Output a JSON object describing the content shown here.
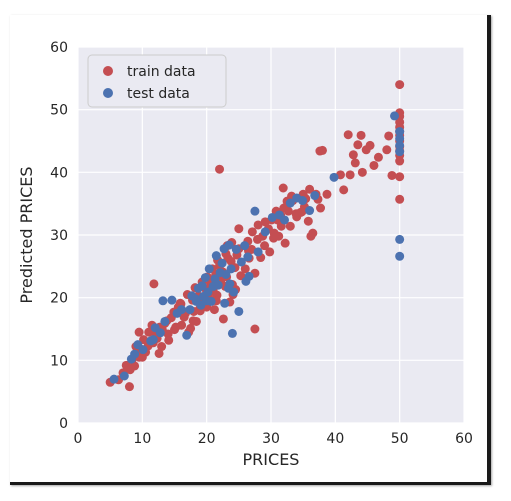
{
  "chart_data": {
    "type": "scatter",
    "title": "",
    "xlabel": "PRICES",
    "ylabel": "Predicted PRICES",
    "xlim": [
      0,
      60
    ],
    "ylim": [
      0,
      60
    ],
    "xticks": [
      "0",
      "10",
      "20",
      "30",
      "40",
      "50",
      "60"
    ],
    "yticks": [
      "0",
      "10",
      "20",
      "30",
      "40",
      "50",
      "60"
    ],
    "grid": true,
    "legend": "top-left",
    "series": [
      {
        "name": "train data",
        "color": "#c44e52",
        "x": [
          5,
          6.3,
          7,
          7.5,
          8,
          8.1,
          8.4,
          8.8,
          9,
          9.5,
          9.7,
          10,
          10.2,
          10.5,
          10.9,
          11,
          11.5,
          11.7,
          12,
          12.3,
          12.7,
          13,
          13.1,
          13.5,
          13.8,
          14,
          14.1,
          14.5,
          14.9,
          15,
          15.2,
          15.6,
          16,
          16.1,
          16.5,
          16.7,
          17,
          17.2,
          17.5,
          17.8,
          18,
          18.2,
          18.4,
          18.7,
          18.9,
          19,
          19.3,
          19.4,
          19.6,
          19.9,
          20,
          20.1,
          20.3,
          20.5,
          20.6,
          20.9,
          21,
          21.2,
          21.4,
          21.6,
          21.7,
          22,
          22,
          22.2,
          22.5,
          22.6,
          22.9,
          23,
          23.1,
          23.3,
          23.6,
          23.8,
          23.9,
          24,
          24.1,
          24.4,
          24.5,
          24.7,
          25,
          25,
          25.3,
          26,
          26.4,
          26.6,
          27,
          27.1,
          27.5,
          27.9,
          28,
          28.4,
          28.7,
          29,
          29.1,
          29.6,
          29.8,
          30.1,
          30.5,
          30.8,
          31,
          31.2,
          31.5,
          31.6,
          32,
          32.2,
          32.5,
          32.7,
          33,
          33.2,
          33.4,
          34,
          34.6,
          35,
          35.2,
          35.4,
          36,
          36.2,
          36.5,
          37,
          37.3,
          37.6,
          38,
          38.7,
          41.3,
          42,
          42.3,
          42.8,
          43.1,
          43.5,
          44,
          44.8,
          45.4,
          46,
          46.7,
          48,
          48.3,
          48.8,
          50,
          50,
          50,
          50,
          50,
          50,
          50,
          50,
          50,
          50,
          50,
          50,
          50,
          50,
          22,
          27.5,
          21.5,
          23.2,
          17.9,
          9.5,
          11.8,
          26.5,
          30.4,
          33.9,
          34.8,
          12.6,
          15.9,
          37.7,
          40.8,
          44.2,
          35.8,
          31.9
        ],
        "y": [
          6.5,
          6.9,
          8,
          9.2,
          5.8,
          8.5,
          10.1,
          9.1,
          12.2,
          10.5,
          11.8,
          10.5,
          13.3,
          11.3,
          12.3,
          14.5,
          15.6,
          12.8,
          14.4,
          13.5,
          15.3,
          12.2,
          14.9,
          15.9,
          16.3,
          14.2,
          13.2,
          16.8,
          17.7,
          14.9,
          15.3,
          18.5,
          19,
          15.6,
          16.9,
          17.5,
          20.5,
          14.5,
          15.1,
          19.6,
          17.8,
          21.6,
          16.2,
          20.3,
          18.2,
          17.9,
          22.5,
          19.8,
          18.6,
          21.3,
          18.5,
          23.3,
          20.6,
          19.7,
          22.2,
          24.6,
          21.2,
          18.1,
          23.7,
          20.4,
          26,
          25.1,
          40.5,
          22.8,
          24.1,
          16.6,
          21.8,
          27,
          23.3,
          26.3,
          19.3,
          25.8,
          28.8,
          22.1,
          20.5,
          24.8,
          21.3,
          26.8,
          31,
          27.8,
          23.5,
          24.6,
          29,
          26.3,
          27.7,
          30.5,
          23.9,
          29.3,
          31.6,
          26.4,
          29.8,
          28.3,
          32.1,
          31,
          27.3,
          32.4,
          30.3,
          33.8,
          32.4,
          29.8,
          33.1,
          31.4,
          34.3,
          28.7,
          35.4,
          33.8,
          31.4,
          36.2,
          35.5,
          32.9,
          33.6,
          36.5,
          34.5,
          35.8,
          37.3,
          29.8,
          30.3,
          36.5,
          35.7,
          43.4,
          43.5,
          36.5,
          37.2,
          46,
          39.6,
          42.8,
          41.5,
          44.4,
          45.9,
          43.6,
          44.3,
          41.1,
          42.4,
          43.6,
          45.8,
          39.5,
          54,
          49.5,
          48.9,
          48,
          47.2,
          46.5,
          45.9,
          45,
          44.1,
          43.4,
          42.7,
          41.8,
          39.3,
          35.7,
          22.5,
          15,
          19.5,
          28.3,
          16.3,
          14.5,
          22.2,
          27.5,
          29.5,
          33.4,
          33.7,
          11.1,
          19.1,
          34.3,
          39.6,
          40,
          32.2,
          37.5
        ]
      },
      {
        "name": "test data",
        "color": "#4c72b0",
        "x": [
          5.6,
          7.2,
          8.3,
          8.8,
          9.3,
          10.1,
          11.3,
          12,
          12.8,
          13.5,
          14.6,
          15.4,
          16.1,
          16.9,
          17.4,
          17.7,
          18.3,
          18.7,
          19.1,
          19.5,
          19.8,
          20.2,
          20.4,
          20.7,
          21,
          21.3,
          21.5,
          21.8,
          22.1,
          22.4,
          22.7,
          23,
          23.4,
          23.5,
          23.8,
          24.2,
          24.6,
          25,
          25.4,
          25.9,
          26.1,
          26.4,
          26.6,
          27.5,
          28,
          29.1,
          30.2,
          31.3,
          32.1,
          33,
          34,
          34.9,
          36,
          36.8,
          39.8,
          49.2,
          50,
          50,
          50,
          50,
          50,
          50,
          20,
          24,
          22.8,
          19.3,
          18.4,
          13.2,
          11.7,
          23.6
        ],
        "y": [
          7,
          7.5,
          10.2,
          11,
          12.5,
          11.7,
          13.1,
          15.2,
          14.4,
          16.2,
          19.6,
          17.5,
          18.1,
          14,
          18.1,
          20.3,
          19.8,
          21.5,
          18.8,
          20.2,
          23.2,
          20.9,
          24.6,
          19.4,
          21.8,
          23,
          26.7,
          22,
          24,
          25.5,
          27.8,
          23.7,
          21.5,
          28.4,
          24.6,
          20.9,
          27.7,
          17.8,
          25.7,
          28.3,
          22.6,
          26.5,
          23.4,
          33.8,
          27.3,
          30.5,
          32.8,
          33.2,
          32.4,
          35.1,
          35.9,
          35.5,
          33.9,
          36.3,
          39.2,
          49,
          46.5,
          45.4,
          44.3,
          43.3,
          29.3,
          26.6,
          19.5,
          14.3,
          19.1,
          21.9,
          19.4,
          19.5,
          13.3,
          22.2
        ]
      }
    ]
  }
}
